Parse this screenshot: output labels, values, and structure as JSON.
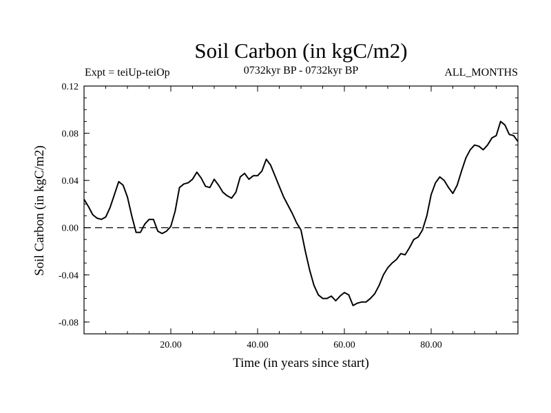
{
  "chart_data": {
    "type": "line",
    "title": "Soil Carbon (in kgC/m2)",
    "subtitle": "0732kyr BP - 0732kyr BP",
    "left_label": "Expt = teiUp-teiOp",
    "right_label": "ALL_MONTHS",
    "xlabel": "Time (in years since start)",
    "ylabel": "Soil Carbon (in kgC/m2)",
    "xlim": [
      0,
      100
    ],
    "ylim": [
      -0.09,
      0.12
    ],
    "x_ticks": [
      20,
      40,
      60,
      80
    ],
    "x_tick_labels": [
      "20.00",
      "40.00",
      "60.00",
      "80.00"
    ],
    "y_ticks": [
      -0.08,
      -0.04,
      0.0,
      0.04,
      0.08,
      0.12
    ],
    "y_tick_labels": [
      "-0.08",
      "-0.04",
      "0.00",
      "0.04",
      "0.08",
      "0.12"
    ],
    "zero_line": 0.0,
    "series": [
      {
        "name": "Soil Carbon",
        "x": [
          0,
          1,
          2,
          3,
          4,
          5,
          6,
          7,
          8,
          9,
          10,
          11,
          12,
          13,
          14,
          15,
          16,
          17,
          18,
          19,
          20,
          21,
          22,
          23,
          24,
          25,
          26,
          27,
          28,
          29,
          30,
          31,
          32,
          33,
          34,
          35,
          36,
          37,
          38,
          39,
          40,
          41,
          42,
          43,
          44,
          45,
          46,
          47,
          48,
          49,
          50,
          51,
          52,
          53,
          54,
          55,
          56,
          57,
          58,
          59,
          60,
          61,
          62,
          63,
          64,
          65,
          66,
          67,
          68,
          69,
          70,
          71,
          72,
          73,
          74,
          75,
          76,
          77,
          78,
          79,
          80,
          81,
          82,
          83,
          84,
          85,
          86,
          87,
          88,
          89,
          90,
          91,
          92,
          93,
          94,
          95,
          96,
          97,
          98,
          99,
          100
        ],
        "values": [
          0.024,
          0.018,
          0.011,
          0.008,
          0.007,
          0.009,
          0.017,
          0.028,
          0.039,
          0.036,
          0.026,
          0.01,
          -0.004,
          -0.004,
          0.003,
          0.007,
          0.007,
          -0.003,
          -0.005,
          -0.003,
          0.001,
          0.014,
          0.034,
          0.037,
          0.038,
          0.041,
          0.047,
          0.042,
          0.035,
          0.034,
          0.041,
          0.036,
          0.03,
          0.027,
          0.025,
          0.03,
          0.043,
          0.046,
          0.041,
          0.044,
          0.044,
          0.048,
          0.058,
          0.053,
          0.044,
          0.035,
          0.026,
          0.019,
          0.012,
          0.004,
          -0.002,
          -0.02,
          -0.036,
          -0.049,
          -0.057,
          -0.06,
          -0.06,
          -0.058,
          -0.062,
          -0.058,
          -0.055,
          -0.057,
          -0.066,
          -0.064,
          -0.063,
          -0.063,
          -0.06,
          -0.056,
          -0.049,
          -0.04,
          -0.034,
          -0.03,
          -0.027,
          -0.022,
          -0.023,
          -0.017,
          -0.01,
          -0.008,
          -0.002,
          0.01,
          0.028,
          0.038,
          0.043,
          0.04,
          0.034,
          0.029,
          0.036,
          0.048,
          0.059,
          0.066,
          0.07,
          0.069,
          0.066,
          0.07,
          0.076,
          0.078,
          0.09,
          0.087,
          0.079,
          0.078,
          0.073
        ]
      }
    ]
  }
}
